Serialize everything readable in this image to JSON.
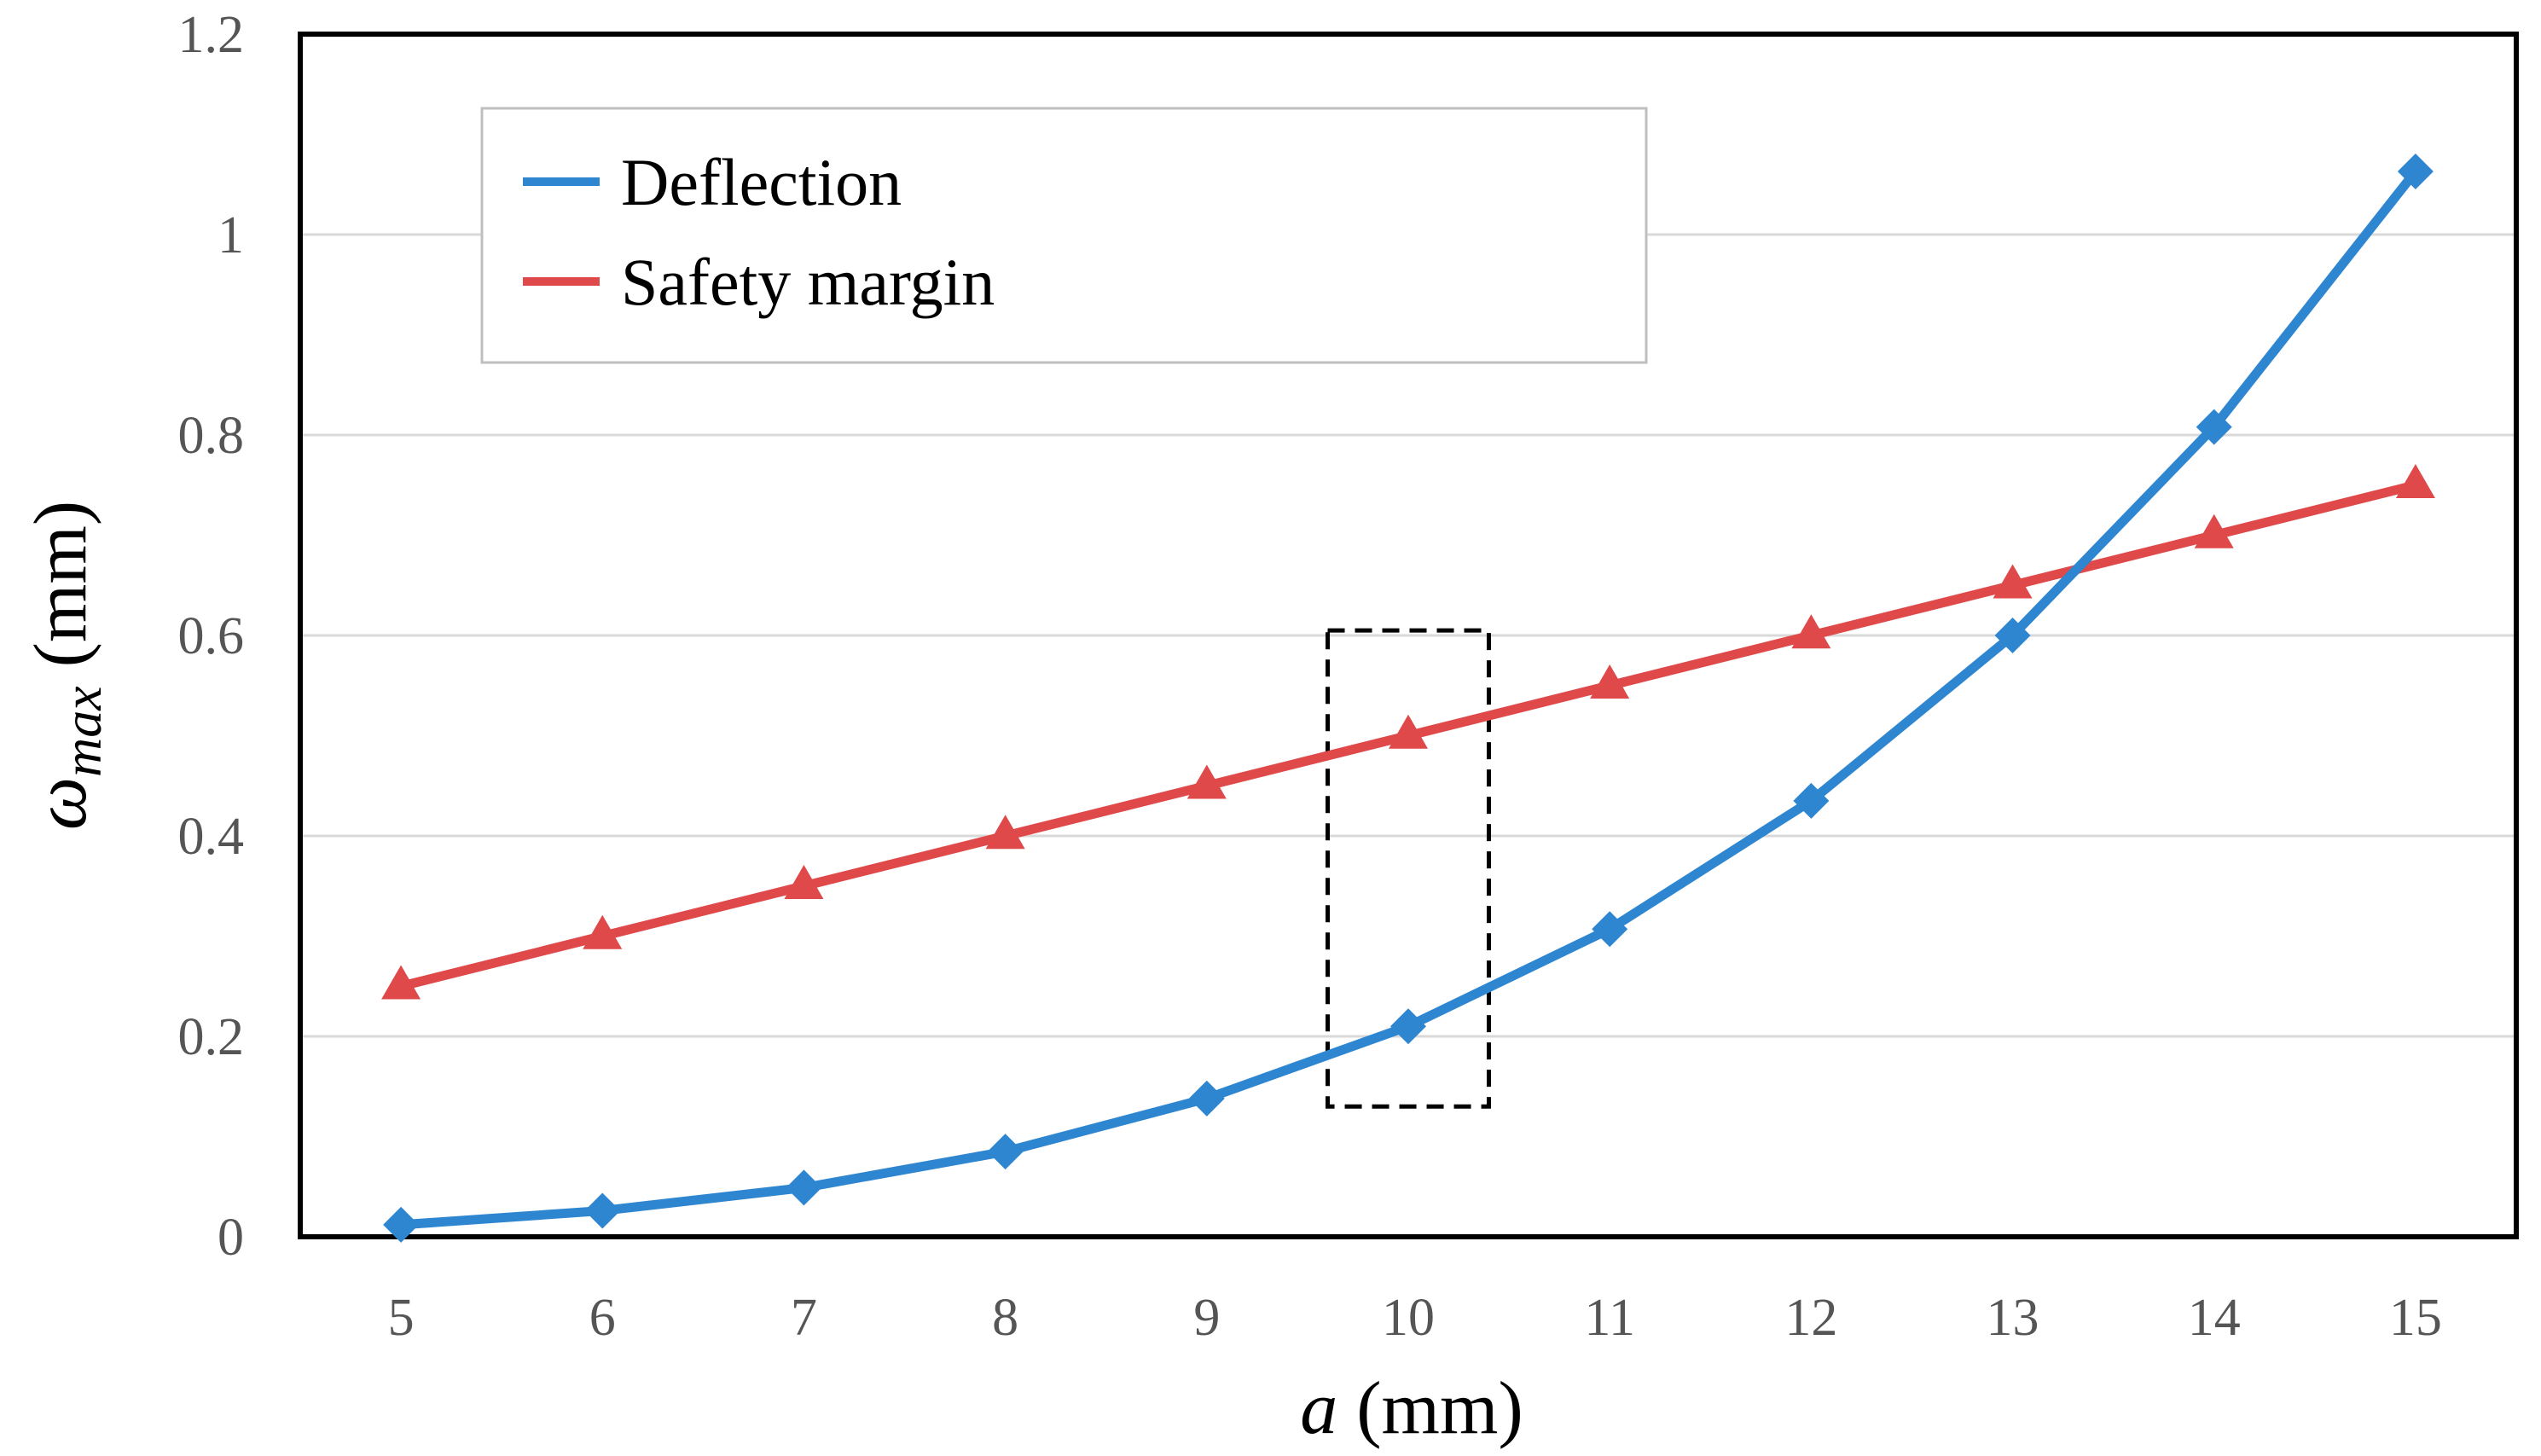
{
  "chart_data": {
    "type": "line",
    "title": "",
    "xlabel": {
      "symbol": "a",
      "unit": " (mm)"
    },
    "ylabel": {
      "symbol": "ω",
      "subscript": "max",
      "unit": " (mm)"
    },
    "x": [
      5,
      6,
      7,
      8,
      9,
      10,
      11,
      12,
      13,
      14,
      15
    ],
    "x_tick_labels": [
      "5",
      "6",
      "7",
      "8",
      "9",
      "10",
      "11",
      "12",
      "13",
      "14",
      "15"
    ],
    "xlim": [
      4.5,
      15.5
    ],
    "ylim": [
      0,
      1.2
    ],
    "y_ticks": [
      0,
      0.2,
      0.4,
      0.6,
      0.8,
      1.0,
      1.2
    ],
    "y_tick_labels": [
      "0",
      "0.2",
      "0.4",
      "0.6",
      "0.8",
      "1",
      "1.2"
    ],
    "grid": "horizontal",
    "legend_position": "top-left",
    "series": [
      {
        "name": "Deflection",
        "color": "#2e86d1",
        "marker": "diamond",
        "values": [
          0.012,
          0.026,
          0.049,
          0.085,
          0.138,
          0.21,
          0.307,
          0.435,
          0.6,
          0.808,
          1.063
        ]
      },
      {
        "name": "Safety margin",
        "color": "#e0494a",
        "marker": "triangle",
        "values": [
          0.25,
          0.3,
          0.35,
          0.4,
          0.45,
          0.5,
          0.55,
          0.6,
          0.65,
          0.7,
          0.75
        ]
      }
    ],
    "annotations": [
      {
        "type": "dashed-rectangle",
        "x_range": [
          9.6,
          10.4
        ],
        "y_range": [
          0.13,
          0.605
        ],
        "color": "#000000"
      }
    ]
  }
}
